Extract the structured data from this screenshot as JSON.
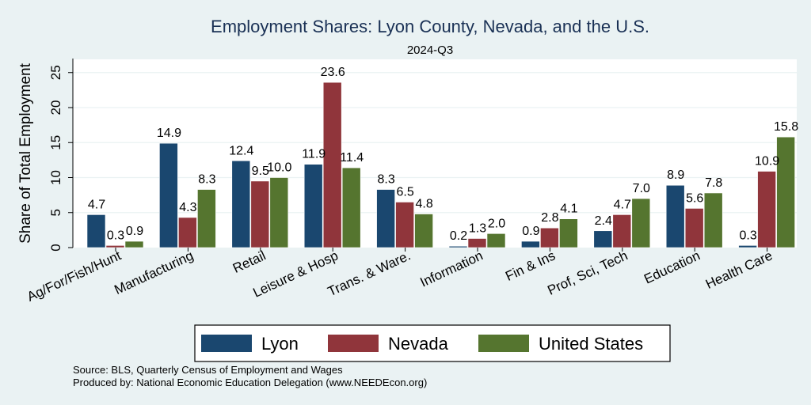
{
  "chart_data": {
    "type": "bar",
    "title": "Employment Shares: Lyon County, Nevada, and the U.S.",
    "subtitle": "2024-Q3",
    "xlabel": "",
    "ylabel": "Share of Total Employment",
    "ylim": [
      0,
      27
    ],
    "yticks": [
      0,
      5,
      10,
      15,
      20,
      25
    ],
    "grid": true,
    "legend_position": "bottom",
    "categories": [
      "Ag/For/Fish/Hunt",
      "Manufacturing",
      "Retail",
      "Leisure & Hosp",
      "Trans. & Ware.",
      "Information",
      "Fin & Ins",
      "Prof, Sci, Tech",
      "Education",
      "Health Care"
    ],
    "series": [
      {
        "name": "Lyon",
        "color": "#1a476f",
        "values": [
          4.7,
          14.9,
          12.4,
          11.9,
          8.3,
          0.2,
          0.9,
          2.4,
          8.9,
          0.3
        ]
      },
      {
        "name": "Nevada",
        "color": "#90353b",
        "values": [
          0.3,
          4.3,
          9.5,
          23.6,
          6.5,
          1.3,
          2.8,
          4.7,
          5.6,
          10.9
        ]
      },
      {
        "name": "United States",
        "color": "#55752f",
        "values": [
          0.9,
          8.3,
          10.0,
          11.4,
          4.8,
          2.0,
          4.1,
          7.0,
          7.8,
          15.8
        ]
      }
    ]
  },
  "notes": {
    "source": "Source: BLS, Quarterly Census of Employment and Wages",
    "produced_by": "Produced by: National Economic Education Delegation (www.NEEDEcon.org)"
  }
}
